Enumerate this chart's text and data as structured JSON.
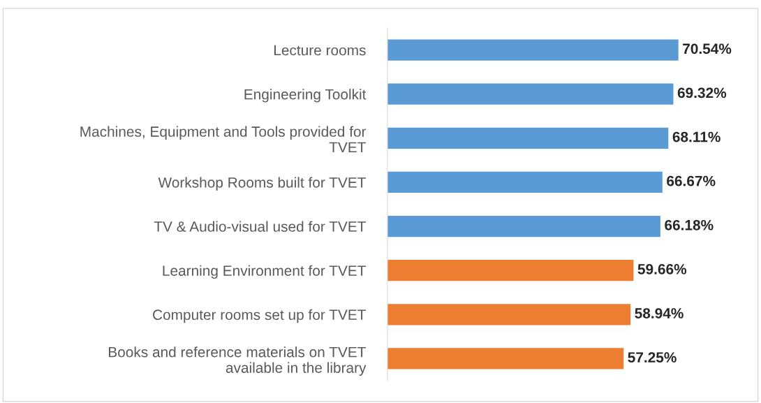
{
  "chart_data": {
    "type": "bar",
    "orientation": "horizontal",
    "data_labels": true,
    "grid": false,
    "legend": false,
    "categories": [
      "Lecture rooms",
      "Engineering Toolkit",
      "Machines, Equipment and Tools provided for\nTVET",
      "Workshop Rooms built for TVET",
      "TV & Audio-visual used for TVET",
      "Learning Environment for TVET",
      "Computer rooms set up for TVET",
      "Books and reference materials on TVET\navailable in the library"
    ],
    "values": [
      70.54,
      69.32,
      68.11,
      66.67,
      66.18,
      59.66,
      58.94,
      57.25
    ],
    "value_labels": [
      "70.54%",
      "69.32%",
      "68.11%",
      "66.67%",
      "66.18%",
      "59.66%",
      "58.94%",
      "57.25%"
    ],
    "colors": [
      "#5b9bd5",
      "#5b9bd5",
      "#5b9bd5",
      "#5b9bd5",
      "#5b9bd5",
      "#ed7d31",
      "#ed7d31",
      "#ed7d31"
    ]
  }
}
